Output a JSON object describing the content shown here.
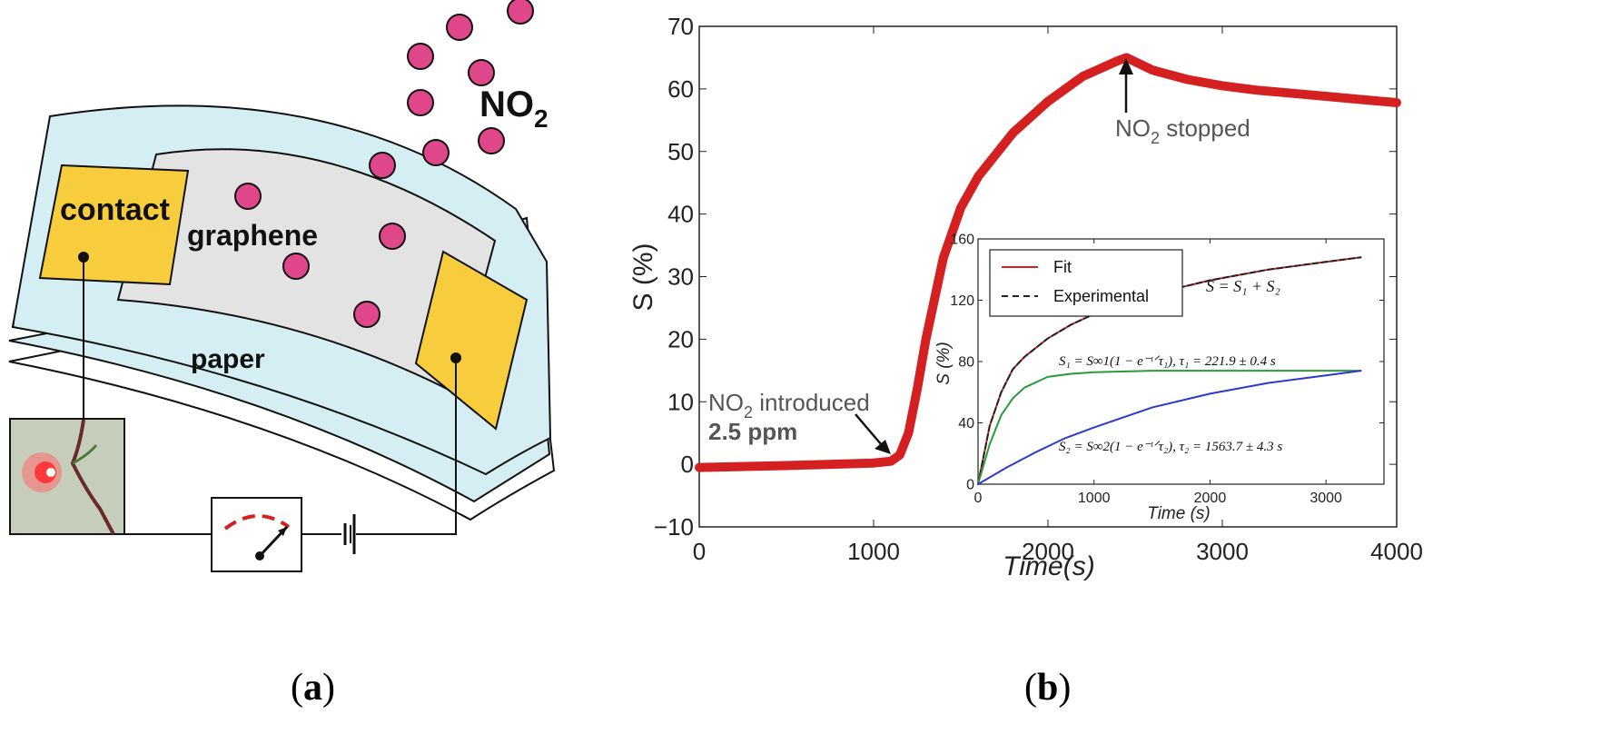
{
  "panel_a": {
    "label_parts": [
      "(",
      "a",
      ")"
    ],
    "text": {
      "contact": "contact",
      "graphene": "graphene",
      "paper": "paper",
      "no2_main": "NO",
      "no2_sub": "2"
    },
    "colors": {
      "paper": "#d4eef4",
      "graphene": "#e3e3e3",
      "contact": "#f7cd3e",
      "molecule": "#e0468a"
    }
  },
  "panel_b": {
    "label_parts": [
      "(",
      "b",
      ")"
    ],
    "annotations": {
      "stopped_main": "NO",
      "stopped_sub": "2",
      "stopped_rest": " stopped",
      "introduced_main": "NO",
      "introduced_sub": "2",
      "introduced_rest": " introduced",
      "conc": "2.5 ppm"
    },
    "inset_text": {
      "sum_eq": "S = S₁ + S₂",
      "s1_eq": "S₁ = S∞1(1 − e⁻ᵗᐟτ₁), τ₁ = 221.9 ± 0.4 s",
      "s2_eq": "S₂ = S∞2(1 − e⁻ᵗᐟτ₂), τ₂ = 1563.7 ± 4.3 s"
    }
  },
  "chart_data": [
    {
      "type": "line",
      "xlabel": "Time(s)",
      "ylabel": "S (%)",
      "xlim": [
        0,
        4000
      ],
      "ylim": [
        -10,
        70
      ],
      "x_ticks": [
        0,
        1000,
        2000,
        3000,
        4000
      ],
      "y_ticks": [
        -10,
        0,
        10,
        20,
        30,
        40,
        50,
        60,
        70
      ],
      "grid": false,
      "series": [
        {
          "color": "#d42020",
          "x": [
            0,
            500,
            1000,
            1100,
            1150,
            1200,
            1250,
            1300,
            1400,
            1500,
            1600,
            1800,
            2000,
            2200,
            2400,
            2450,
            2600,
            2800,
            3000,
            3200,
            3400,
            3600,
            3800,
            4000
          ],
          "y": [
            -0.5,
            -0.2,
            0.2,
            0.5,
            1.5,
            5,
            12,
            20,
            33,
            41,
            46,
            53,
            58,
            62,
            64.5,
            65,
            63,
            61.5,
            60.5,
            59.8,
            59.3,
            58.8,
            58.3,
            57.8
          ]
        }
      ]
    },
    {
      "type": "line",
      "xlabel": "Time (s)",
      "ylabel": "S (%)",
      "xlim": [
        0,
        3500
      ],
      "ylim": [
        0,
        160
      ],
      "x_ticks": [
        0,
        1000,
        2000,
        3000
      ],
      "y_ticks": [
        0,
        40,
        80,
        120,
        160
      ],
      "legend_position": "top-left",
      "series": [
        {
          "name": "Fit",
          "color": "#d42020",
          "style": "solid",
          "x": [
            0,
            100,
            200,
            300,
            400,
            600,
            800,
            1000,
            1250,
            1500,
            2000,
            2500,
            3000,
            3300
          ],
          "y": [
            0,
            38,
            60,
            75,
            83,
            95,
            104,
            111,
            118,
            124,
            133,
            140,
            145,
            148
          ]
        },
        {
          "name": "Experimental",
          "color": "#222222",
          "style": "dashed",
          "x": [
            0,
            100,
            200,
            300,
            400,
            600,
            800,
            1000,
            1250,
            1500,
            2000,
            2500,
            3000,
            3300
          ],
          "y": [
            0,
            38,
            60,
            75,
            83,
            95,
            104,
            111,
            118,
            124,
            133,
            140,
            145,
            148
          ]
        },
        {
          "color": "#2a9a3a",
          "style": "solid",
          "x": [
            0,
            100,
            200,
            300,
            400,
            600,
            800,
            1000,
            1500,
            2000,
            2500,
            3000,
            3300
          ],
          "y": [
            0,
            26,
            45,
            56,
            63,
            70,
            72,
            73,
            74,
            74,
            74,
            74,
            74
          ]
        },
        {
          "color": "#2a3ad0",
          "style": "solid",
          "x": [
            0,
            250,
            500,
            750,
            1000,
            1500,
            2000,
            2500,
            3000,
            3300
          ],
          "y": [
            0,
            11,
            21,
            30,
            37,
            50,
            59,
            66,
            71,
            74
          ]
        }
      ]
    }
  ]
}
